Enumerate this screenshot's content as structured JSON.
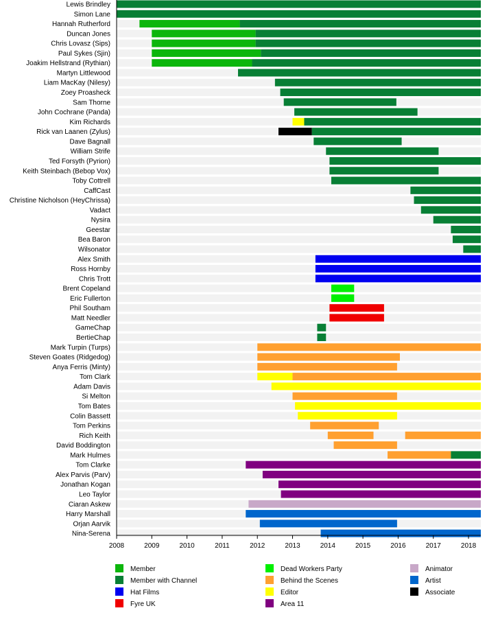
{
  "chart_data": {
    "type": "bar",
    "title": "",
    "xlabel": "",
    "ylabel": "",
    "xlim": [
      2008,
      2018.35
    ],
    "x_ticks": [
      "2008",
      "2009",
      "2010",
      "2011",
      "2012",
      "2013",
      "2014",
      "2015",
      "2016",
      "2017",
      "2018"
    ],
    "grid": false,
    "legend_placement": "bottom",
    "roles": [
      {
        "key": "member",
        "name": "Member",
        "color": "#0cb60c"
      },
      {
        "key": "channel",
        "name": "Member with Channel",
        "color": "#087f35"
      },
      {
        "key": "hat",
        "name": "Hat Films",
        "color": "#0000f0"
      },
      {
        "key": "fyre",
        "name": "Fyre UK",
        "color": "#f00000"
      },
      {
        "key": "dwp",
        "name": "Dead Workers Party",
        "color": "#00f000"
      },
      {
        "key": "bts",
        "name": "Behind the Scenes",
        "color": "#ffa030"
      },
      {
        "key": "editor",
        "name": "Editor",
        "color": "#ffff00"
      },
      {
        "key": "area11",
        "name": "Area 11",
        "color": "#800080"
      },
      {
        "key": "animator",
        "name": "Animator",
        "color": "#c8a8c8"
      },
      {
        "key": "artist",
        "name": "Artist",
        "color": "#0066cc"
      },
      {
        "key": "associate",
        "name": "Associate",
        "color": "#000000"
      }
    ],
    "people": [
      {
        "name": "Lewis Brindley",
        "segments": [
          {
            "role": "channel",
            "start": 2008,
            "end": 2018.35
          }
        ]
      },
      {
        "name": "Simon Lane",
        "segments": [
          {
            "role": "channel",
            "start": 2008,
            "end": 2018.35
          }
        ]
      },
      {
        "name": "Hannah Rutherford",
        "segments": [
          {
            "role": "member",
            "start": 2008.65,
            "end": 2011.5
          },
          {
            "role": "channel",
            "start": 2011.5,
            "end": 2018.35
          }
        ]
      },
      {
        "name": "Duncan Jones",
        "segments": [
          {
            "role": "member",
            "start": 2009.0,
            "end": 2011.95
          },
          {
            "role": "channel",
            "start": 2011.95,
            "end": 2018.35
          }
        ]
      },
      {
        "name": "Chris Lovasz (Sips)",
        "segments": [
          {
            "role": "member",
            "start": 2009.0,
            "end": 2011.95
          },
          {
            "role": "channel",
            "start": 2011.95,
            "end": 2018.35
          }
        ]
      },
      {
        "name": "Paul Sykes (Sjin)",
        "segments": [
          {
            "role": "member",
            "start": 2009.0,
            "end": 2012.1
          },
          {
            "role": "channel",
            "start": 2012.1,
            "end": 2018.35
          }
        ]
      },
      {
        "name": "Joakim Hellstrand (Rythian)",
        "segments": [
          {
            "role": "member",
            "start": 2009.0,
            "end": 2011.85
          },
          {
            "role": "channel",
            "start": 2011.85,
            "end": 2018.35
          }
        ]
      },
      {
        "name": "Martyn Littlewood",
        "segments": [
          {
            "role": "channel",
            "start": 2011.45,
            "end": 2018.35
          }
        ]
      },
      {
        "name": "Liam MacKay (Nilesy)",
        "segments": [
          {
            "role": "channel",
            "start": 2012.5,
            "end": 2018.35
          }
        ]
      },
      {
        "name": "Zoey Proasheck",
        "segments": [
          {
            "role": "channel",
            "start": 2012.65,
            "end": 2018.35
          }
        ]
      },
      {
        "name": "Sam Thorne",
        "segments": [
          {
            "role": "channel",
            "start": 2012.75,
            "end": 2015.95
          }
        ]
      },
      {
        "name": "John Cochrane (Panda)",
        "segments": [
          {
            "role": "channel",
            "start": 2013.05,
            "end": 2016.55
          }
        ]
      },
      {
        "name": "Kim Richards",
        "segments": [
          {
            "role": "editor",
            "start": 2013.0,
            "end": 2013.33
          },
          {
            "role": "channel",
            "start": 2013.33,
            "end": 2018.35
          }
        ]
      },
      {
        "name": "Rick van Laanen (Zylus)",
        "segments": [
          {
            "role": "associate",
            "start": 2012.6,
            "end": 2013.55
          },
          {
            "role": "channel",
            "start": 2013.55,
            "end": 2018.35
          }
        ]
      },
      {
        "name": "Dave Bagnall",
        "segments": [
          {
            "role": "channel",
            "start": 2013.6,
            "end": 2016.1
          }
        ]
      },
      {
        "name": "William Strife",
        "segments": [
          {
            "role": "channel",
            "start": 2013.95,
            "end": 2017.15
          }
        ]
      },
      {
        "name": "Ted Forsyth (Pyrion)",
        "segments": [
          {
            "role": "channel",
            "start": 2014.05,
            "end": 2018.35
          }
        ]
      },
      {
        "name": "Keith Steinbach (Bebop Vox)",
        "segments": [
          {
            "role": "channel",
            "start": 2014.05,
            "end": 2017.15
          }
        ]
      },
      {
        "name": "Toby Cottrell",
        "segments": [
          {
            "role": "channel",
            "start": 2014.1,
            "end": 2018.35
          }
        ]
      },
      {
        "name": "CaffCast",
        "segments": [
          {
            "role": "channel",
            "start": 2016.35,
            "end": 2018.35
          }
        ]
      },
      {
        "name": "Christine Nicholson (HeyChrissa)",
        "segments": [
          {
            "role": "channel",
            "start": 2016.45,
            "end": 2018.35
          }
        ]
      },
      {
        "name": "Vadact",
        "segments": [
          {
            "role": "channel",
            "start": 2016.65,
            "end": 2018.35
          }
        ]
      },
      {
        "name": "Nysira",
        "segments": [
          {
            "role": "channel",
            "start": 2017.0,
            "end": 2018.35
          }
        ]
      },
      {
        "name": "Geestar",
        "segments": [
          {
            "role": "channel",
            "start": 2017.5,
            "end": 2018.35
          }
        ]
      },
      {
        "name": "Bea Baron",
        "segments": [
          {
            "role": "channel",
            "start": 2017.55,
            "end": 2018.35
          }
        ]
      },
      {
        "name": "Wilsonator",
        "segments": [
          {
            "role": "channel",
            "start": 2017.85,
            "end": 2018.35
          }
        ]
      },
      {
        "name": "Alex Smith",
        "segments": [
          {
            "role": "hat",
            "start": 2013.65,
            "end": 2018.35
          }
        ]
      },
      {
        "name": "Ross Hornby",
        "segments": [
          {
            "role": "hat",
            "start": 2013.65,
            "end": 2018.35
          }
        ]
      },
      {
        "name": "Chris Trott",
        "segments": [
          {
            "role": "hat",
            "start": 2013.65,
            "end": 2018.35
          }
        ]
      },
      {
        "name": "Brent Copeland",
        "segments": [
          {
            "role": "dwp",
            "start": 2014.1,
            "end": 2014.75
          }
        ]
      },
      {
        "name": "Eric Fullerton",
        "segments": [
          {
            "role": "dwp",
            "start": 2014.1,
            "end": 2014.75
          }
        ]
      },
      {
        "name": "Phil Southam",
        "segments": [
          {
            "role": "fyre",
            "start": 2014.05,
            "end": 2015.6
          }
        ]
      },
      {
        "name": "Matt Needler",
        "segments": [
          {
            "role": "fyre",
            "start": 2014.05,
            "end": 2015.6
          }
        ]
      },
      {
        "name": "GameChap",
        "segments": [
          {
            "role": "channel",
            "start": 2013.7,
            "end": 2013.95
          }
        ]
      },
      {
        "name": "BertieChap",
        "segments": [
          {
            "role": "channel",
            "start": 2013.7,
            "end": 2013.95
          }
        ]
      },
      {
        "name": "Mark Turpin (Turps)",
        "segments": [
          {
            "role": "bts",
            "start": 2012.0,
            "end": 2018.35
          }
        ]
      },
      {
        "name": "Steven Goates (Ridgedog)",
        "segments": [
          {
            "role": "bts",
            "start": 2012.0,
            "end": 2016.05
          }
        ]
      },
      {
        "name": "Anya Ferris (Minty)",
        "segments": [
          {
            "role": "bts",
            "start": 2012.0,
            "end": 2015.97
          }
        ]
      },
      {
        "name": "Tom Clark",
        "segments": [
          {
            "role": "editor",
            "start": 2012.0,
            "end": 2013.0
          },
          {
            "role": "bts",
            "start": 2013.0,
            "end": 2018.35
          }
        ]
      },
      {
        "name": "Adam Davis",
        "segments": [
          {
            "role": "editor",
            "start": 2012.4,
            "end": 2018.35
          }
        ]
      },
      {
        "name": "Si Melton",
        "segments": [
          {
            "role": "bts",
            "start": 2013.0,
            "end": 2015.97
          }
        ]
      },
      {
        "name": "Tom Bates",
        "segments": [
          {
            "role": "editor",
            "start": 2013.07,
            "end": 2018.35
          }
        ]
      },
      {
        "name": "Colin Bassett",
        "segments": [
          {
            "role": "editor",
            "start": 2013.15,
            "end": 2015.97
          }
        ]
      },
      {
        "name": "Tom Perkins",
        "segments": [
          {
            "role": "bts",
            "start": 2013.5,
            "end": 2015.45
          }
        ]
      },
      {
        "name": "Rich Keith",
        "segments": [
          {
            "role": "bts",
            "start": 2014.0,
            "end": 2015.3
          },
          {
            "role": "bts",
            "start": 2016.2,
            "end": 2018.35
          }
        ]
      },
      {
        "name": "David Boddington",
        "segments": [
          {
            "role": "bts",
            "start": 2014.17,
            "end": 2015.97
          }
        ]
      },
      {
        "name": "Mark Hulmes",
        "segments": [
          {
            "role": "bts",
            "start": 2015.7,
            "end": 2017.5
          },
          {
            "role": "channel",
            "start": 2017.5,
            "end": 2018.35
          }
        ]
      },
      {
        "name": "Tom Clarke",
        "segments": [
          {
            "role": "area11",
            "start": 2011.67,
            "end": 2018.35
          }
        ]
      },
      {
        "name": "Alex Parvis (Parv)",
        "segments": [
          {
            "role": "area11",
            "start": 2012.15,
            "end": 2018.35
          }
        ]
      },
      {
        "name": "Jonathan Kogan",
        "segments": [
          {
            "role": "area11",
            "start": 2012.6,
            "end": 2018.35
          }
        ]
      },
      {
        "name": "Leo Taylor",
        "segments": [
          {
            "role": "area11",
            "start": 2012.67,
            "end": 2018.35
          }
        ]
      },
      {
        "name": "Ciaran Askew",
        "segments": [
          {
            "role": "animator",
            "start": 2011.75,
            "end": 2018.35
          }
        ]
      },
      {
        "name": "Harry Marshall",
        "segments": [
          {
            "role": "artist",
            "start": 2011.67,
            "end": 2018.35
          }
        ]
      },
      {
        "name": "Orjan Aarvik",
        "segments": [
          {
            "role": "artist",
            "start": 2012.07,
            "end": 2015.97
          }
        ]
      },
      {
        "name": "Nina-Serena",
        "segments": [
          {
            "role": "artist",
            "start": 2013.8,
            "end": 2018.35
          }
        ]
      }
    ]
  }
}
